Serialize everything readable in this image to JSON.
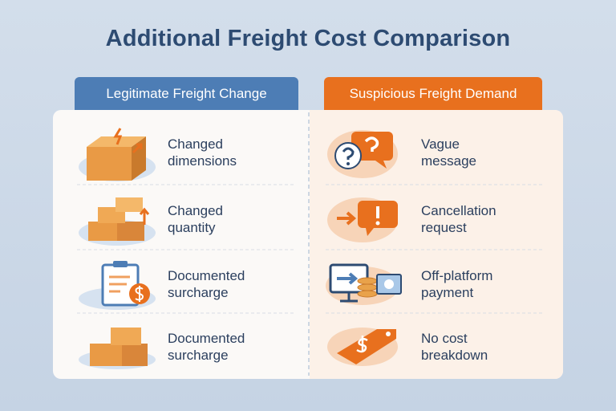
{
  "title": "Additional Freight Cost Comparison",
  "columns": [
    {
      "header": "Legitimate Freight Change",
      "items": [
        "Changed\ndimensions",
        "Changed\nquantity",
        "Documented\nsurcharge",
        "Documented\nsurcharge"
      ]
    },
    {
      "header": "Suspicious Freight Demand",
      "items": [
        "Vague\nmessage",
        "Cancellation\nrequest",
        "Off-platform\npayment",
        "No cost\nbreakdown"
      ]
    }
  ]
}
